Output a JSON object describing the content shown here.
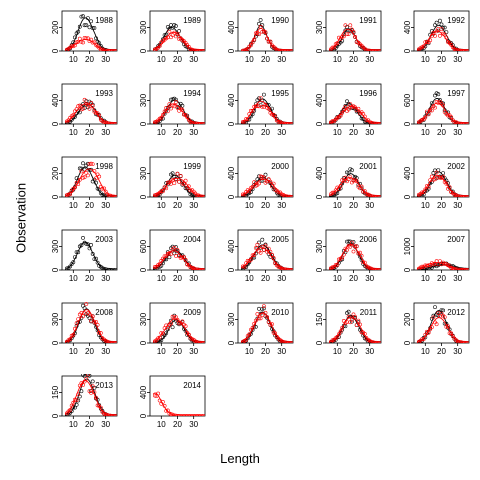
{
  "chart_data": {
    "type": "scatter",
    "layout": "small-multiples",
    "xlabel": "Length",
    "ylabel": "Observation",
    "x_ticks": [
      10,
      20,
      30
    ],
    "colors": {
      "series_a": "#000000",
      "series_b": "#ff0000"
    },
    "markers": "open circles with fitted curves",
    "panels": [
      {
        "label": "1988",
        "y_ticks": [
          0,
          200
        ],
        "a": {
          "peak_x": 17,
          "peak_y": 270,
          "width": 4.2,
          "tail": 60
        },
        "b": {
          "peak_x": 16,
          "peak_y": 90,
          "width": 5,
          "tail": 30
        }
      },
      {
        "label": "1989",
        "y_ticks": [
          0,
          300
        ],
        "a": {
          "peak_x": 16,
          "peak_y": 290,
          "width": 4.5,
          "tail": 50
        },
        "b": {
          "peak_x": 17,
          "peak_y": 230,
          "width": 5,
          "tail": 40
        }
      },
      {
        "label": "1990",
        "y_ticks": [
          0,
          400
        ],
        "a": {
          "peak_x": 17,
          "peak_y": 430,
          "width": 3.5,
          "tail": 30
        },
        "b": {
          "peak_x": 17,
          "peak_y": 380,
          "width": 3.8,
          "tail": 30
        }
      },
      {
        "label": "1991",
        "y_ticks": [
          0,
          300
        ],
        "a": {
          "peak_x": 17,
          "peak_y": 280,
          "width": 4,
          "tail": 20
        },
        "b": {
          "peak_x": 16,
          "peak_y": 270,
          "width": 4.5,
          "tail": 40
        }
      },
      {
        "label": "1992",
        "y_ticks": [
          0,
          400
        ],
        "a": {
          "peak_x": 18,
          "peak_y": 430,
          "width": 4.5,
          "tail": 40
        },
        "b": {
          "peak_x": 17,
          "peak_y": 330,
          "width": 5,
          "tail": 40
        }
      },
      {
        "label": "1993",
        "y_ticks": [
          0,
          400
        ],
        "a": {
          "peak_x": 18,
          "peak_y": 320,
          "width": 5,
          "tail": 60
        },
        "b": {
          "peak_x": 17,
          "peak_y": 330,
          "width": 5.5,
          "tail": 60
        }
      },
      {
        "label": "1994",
        "y_ticks": [
          0,
          300
        ],
        "a": {
          "peak_x": 18,
          "peak_y": 300,
          "width": 4.5,
          "tail": 40
        },
        "b": {
          "peak_x": 17,
          "peak_y": 250,
          "width": 5,
          "tail": 40
        }
      },
      {
        "label": "1995",
        "y_ticks": [
          0,
          400
        ],
        "a": {
          "peak_x": 18,
          "peak_y": 420,
          "width": 4.5,
          "tail": 40
        },
        "b": {
          "peak_x": 17,
          "peak_y": 380,
          "width": 5,
          "tail": 40
        }
      },
      {
        "label": "1996",
        "y_ticks": [
          0,
          400
        ],
        "a": {
          "peak_x": 17,
          "peak_y": 340,
          "width": 4.5,
          "tail": 40
        },
        "b": {
          "peak_x": 18,
          "peak_y": 290,
          "width": 5.5,
          "tail": 50
        }
      },
      {
        "label": "1997",
        "y_ticks": [
          0,
          600
        ],
        "a": {
          "peak_x": 17,
          "peak_y": 640,
          "width": 4.5,
          "tail": 60
        },
        "b": {
          "peak_x": 17,
          "peak_y": 520,
          "width": 5,
          "tail": 60
        }
      },
      {
        "label": "1998",
        "y_ticks": [
          0,
          200
        ],
        "a": {
          "peak_x": 17,
          "peak_y": 250,
          "width": 4.5,
          "tail": 30
        },
        "b": {
          "peak_x": 19,
          "peak_y": 230,
          "width": 5.5,
          "tail": 40
        }
      },
      {
        "label": "1999",
        "y_ticks": [
          0,
          300
        ],
        "a": {
          "peak_x": 18,
          "peak_y": 270,
          "width": 4.5,
          "tail": 40
        },
        "b": {
          "peak_x": 19,
          "peak_y": 230,
          "width": 6,
          "tail": 40
        }
      },
      {
        "label": "2000",
        "y_ticks": [
          0,
          400
        ],
        "a": {
          "peak_x": 18,
          "peak_y": 330,
          "width": 4.5,
          "tail": 40
        },
        "b": {
          "peak_x": 18,
          "peak_y": 290,
          "width": 6,
          "tail": 50
        }
      },
      {
        "label": "2001",
        "y_ticks": [
          0,
          400
        ],
        "a": {
          "peak_x": 18,
          "peak_y": 390,
          "width": 4.5,
          "tail": 40
        },
        "b": {
          "peak_x": 17,
          "peak_y": 320,
          "width": 5.5,
          "tail": 50
        }
      },
      {
        "label": "2002",
        "y_ticks": [
          0,
          400
        ],
        "a": {
          "peak_x": 18,
          "peak_y": 420,
          "width": 4.5,
          "tail": 40
        },
        "b": {
          "peak_x": 17,
          "peak_y": 360,
          "width": 5,
          "tail": 50
        }
      },
      {
        "label": "2003",
        "y_ticks": [
          0,
          300
        ],
        "a": {
          "peak_x": 17,
          "peak_y": 350,
          "width": 4.5,
          "tail": 30
        },
        "b": {
          "peak_x": 0,
          "peak_y": 0,
          "width": 1,
          "tail": 0
        }
      },
      {
        "label": "2004",
        "y_ticks": [
          0,
          600
        ],
        "a": {
          "peak_x": 18,
          "peak_y": 500,
          "width": 5,
          "tail": 60
        },
        "b": {
          "peak_x": 17,
          "peak_y": 480,
          "width": 5.5,
          "tail": 60
        }
      },
      {
        "label": "2005",
        "y_ticks": [
          0,
          400
        ],
        "a": {
          "peak_x": 18,
          "peak_y": 420,
          "width": 5,
          "tail": 40
        },
        "b": {
          "peak_x": 17,
          "peak_y": 370,
          "width": 5.5,
          "tail": 50
        }
      },
      {
        "label": "2006",
        "y_ticks": [
          0,
          300
        ],
        "a": {
          "peak_x": 18,
          "peak_y": 330,
          "width": 4.5,
          "tail": 30
        },
        "b": {
          "peak_x": 18,
          "peak_y": 320,
          "width": 5,
          "tail": 30
        }
      },
      {
        "label": "2007",
        "y_ticks": [
          0,
          1000
        ],
        "a": {
          "peak_x": 20,
          "peak_y": 220,
          "width": 6,
          "tail": 40
        },
        "b": {
          "peak_x": 16,
          "peak_y": 300,
          "width": 6,
          "tail": 60
        }
      },
      {
        "label": "2008",
        "y_ticks": [
          0,
          300
        ],
        "a": {
          "peak_x": 18,
          "peak_y": 430,
          "width": 4.5,
          "tail": 30
        },
        "b": {
          "peak_x": 18,
          "peak_y": 420,
          "width": 5,
          "tail": 30
        }
      },
      {
        "label": "2009",
        "y_ticks": [
          0,
          300
        ],
        "a": {
          "peak_x": 19,
          "peak_y": 290,
          "width": 4.5,
          "tail": 30
        },
        "b": {
          "peak_x": 18,
          "peak_y": 300,
          "width": 5.5,
          "tail": 40
        }
      },
      {
        "label": "2010",
        "y_ticks": [
          0,
          300
        ],
        "a": {
          "peak_x": 18,
          "peak_y": 390,
          "width": 4.5,
          "tail": 30
        },
        "b": {
          "peak_x": 18,
          "peak_y": 380,
          "width": 5,
          "tail": 30
        }
      },
      {
        "label": "2011",
        "y_ticks": [
          0,
          150
        ],
        "a": {
          "peak_x": 18,
          "peak_y": 170,
          "width": 4.5,
          "tail": 20
        },
        "b": {
          "peak_x": 18,
          "peak_y": 160,
          "width": 5,
          "tail": 30
        }
      },
      {
        "label": "2012",
        "y_ticks": [
          0,
          200
        ],
        "a": {
          "peak_x": 18,
          "peak_y": 270,
          "width": 4.5,
          "tail": 30
        },
        "b": {
          "peak_x": 18,
          "peak_y": 210,
          "width": 5,
          "tail": 30
        }
      },
      {
        "label": "2013",
        "y_ticks": [
          0,
          150
        ],
        "a": {
          "peak_x": 18,
          "peak_y": 230,
          "width": 4.5,
          "tail": 30
        },
        "b": {
          "peak_x": 17,
          "peak_y": 220,
          "width": 5,
          "tail": 30
        }
      },
      {
        "label": "2014",
        "y_ticks": [
          0,
          400
        ],
        "a": {
          "peak_x": 0,
          "peak_y": 0,
          "width": 1,
          "tail": 0
        },
        "b": {
          "peak_x": 6,
          "peak_y": 380,
          "width": 3.5,
          "tail": 60
        }
      }
    ]
  }
}
